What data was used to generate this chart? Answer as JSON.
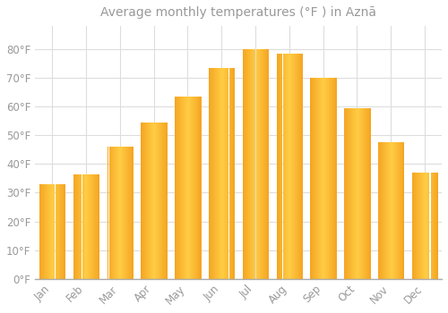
{
  "title": "Average monthly temperatures (°F ) in Aznā",
  "months": [
    "Jan",
    "Feb",
    "Mar",
    "Apr",
    "May",
    "Jun",
    "Jul",
    "Aug",
    "Sep",
    "Oct",
    "Nov",
    "Dec"
  ],
  "values": [
    33.0,
    36.5,
    46.0,
    54.5,
    63.5,
    73.5,
    80.0,
    78.5,
    70.0,
    59.5,
    47.5,
    37.0
  ],
  "bar_color_center": "#FFCC44",
  "bar_color_edge": "#F5A623",
  "background_color": "#FFFFFF",
  "grid_color": "#DDDDDD",
  "text_color": "#999999",
  "ylim": [
    0,
    88
  ],
  "yticks": [
    0,
    10,
    20,
    30,
    40,
    50,
    60,
    70,
    80
  ],
  "title_fontsize": 10,
  "tick_fontsize": 8.5
}
